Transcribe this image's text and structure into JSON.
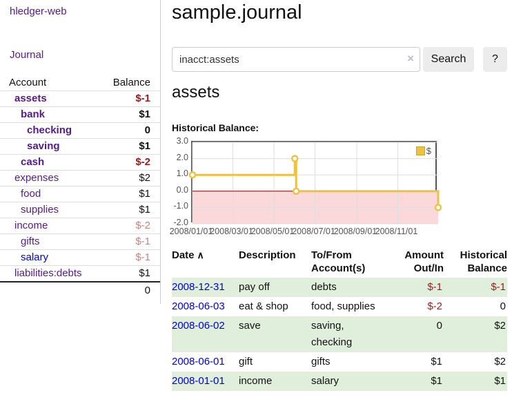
{
  "brand": "hledger-web",
  "nav": {
    "journal": "Journal"
  },
  "sidebar": {
    "header": {
      "account": "Account",
      "balance": "Balance"
    },
    "accounts": [
      {
        "name": "assets",
        "depth": 1,
        "balance": "$-1",
        "bold": true
      },
      {
        "name": "bank",
        "depth": 2,
        "balance": "$1",
        "bold": true
      },
      {
        "name": "checking",
        "depth": 3,
        "balance": "0",
        "bold": true
      },
      {
        "name": "saving",
        "depth": 3,
        "balance": "$1",
        "bold": true
      },
      {
        "name": "cash",
        "depth": 2,
        "balance": "$-2",
        "bold": true
      },
      {
        "name": "expenses",
        "depth": 1,
        "balance": "$2"
      },
      {
        "name": "food",
        "depth": 2,
        "balance": "$1"
      },
      {
        "name": "supplies",
        "depth": 2,
        "balance": "$1"
      },
      {
        "name": "income",
        "depth": 1,
        "balance": "$-2"
      },
      {
        "name": "gifts",
        "depth": 2,
        "balance": "$-1"
      },
      {
        "name": "salary",
        "depth": 2,
        "balance": "$-1",
        "visited": false
      },
      {
        "name": "liabilities:debts",
        "depth": 1,
        "balance": "$1"
      }
    ],
    "total": "0"
  },
  "page": {
    "title": "sample.journal"
  },
  "search": {
    "query": "inacct:assets",
    "clear": "×",
    "search_button": "Search",
    "help_button": "?"
  },
  "account_view": {
    "heading": "assets",
    "chart_title": "Historical Balance:"
  },
  "chart_data": {
    "type": "line",
    "title": "Historical Balance",
    "step": true,
    "x_range": [
      "2008-01-01",
      "2008-12-31"
    ],
    "ylim": [
      -2,
      3
    ],
    "y_ticks": [
      3.0,
      2.0,
      1.0,
      0.0,
      -1.0,
      -2.0
    ],
    "x_ticks": [
      "2008/01/01",
      "2008/03/01",
      "2008/05/01",
      "2008/07/01",
      "2008/09/01",
      "2008/11/01"
    ],
    "series": [
      {
        "name": "$",
        "color": "#edc240",
        "points": [
          {
            "date": "2008-01-01",
            "value": 1
          },
          {
            "date": "2008-06-01",
            "value": 2
          },
          {
            "date": "2008-06-03",
            "value": 0
          },
          {
            "date": "2008-12-31",
            "value": -1
          }
        ]
      }
    ],
    "legend": [
      {
        "label": "$",
        "color": "#edc240"
      }
    ],
    "legend_position": "top-right",
    "grid": true,
    "negative_region_color": "#fbd8da",
    "zero_line_color": "#8b0000"
  },
  "register": {
    "columns": {
      "date": "Date",
      "sort_indicator": "∧",
      "description": "Description",
      "accounts": "To/From Account(s)",
      "amount": "Amount Out/In",
      "balance": "Historical Balance"
    },
    "rows": [
      {
        "date": "2008-12-31",
        "description": "pay off",
        "accounts": "debts",
        "amount": "$-1",
        "balance": "$-1"
      },
      {
        "date": "2008-06-03",
        "description": "eat & shop",
        "accounts": "food, supplies",
        "amount": "$-2",
        "balance": "0"
      },
      {
        "date": "2008-06-02",
        "description": "save",
        "accounts": "saving, checking",
        "amount": "0",
        "balance": "$2"
      },
      {
        "date": "2008-06-01",
        "description": "gift",
        "accounts": "gifts",
        "amount": "$1",
        "balance": "$2"
      },
      {
        "date": "2008-01-01",
        "description": "income",
        "accounts": "salary",
        "amount": "$1",
        "balance": "$1"
      }
    ]
  }
}
